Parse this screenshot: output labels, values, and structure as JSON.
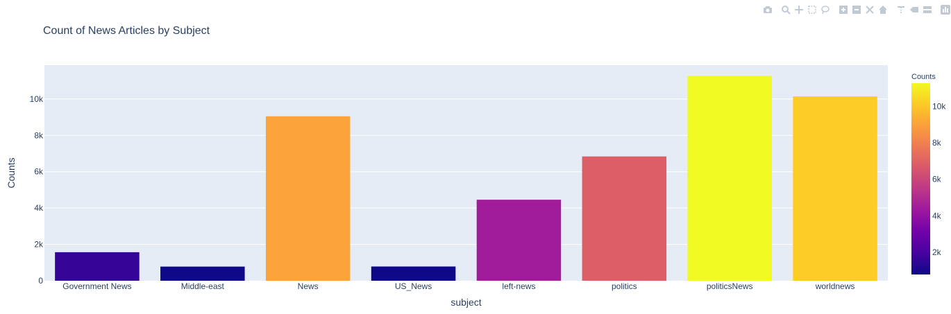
{
  "chart_data": {
    "type": "bar",
    "title": "Count of News Articles by Subject",
    "xlabel": "subject",
    "ylabel": "Counts",
    "categories": [
      "Government News",
      "Middle-east",
      "News",
      "US_News",
      "left-news",
      "politics",
      "politicsNews",
      "worldnews"
    ],
    "values": [
      1570,
      778,
      9050,
      783,
      4459,
      6841,
      11272,
      10145
    ],
    "ylim": [
      0,
      11865
    ],
    "yticks": [
      0,
      2000,
      4000,
      6000,
      8000,
      10000
    ],
    "ytick_labels": [
      "0",
      "2k",
      "4k",
      "6k",
      "8k",
      "10k"
    ],
    "grid": true,
    "colorbar": {
      "title": "Counts",
      "range": [
        778,
        11272
      ],
      "ticks": [
        2000,
        4000,
        6000,
        8000,
        10000
      ],
      "tick_labels": [
        "2k",
        "4k",
        "6k",
        "8k",
        "10k"
      ],
      "colorscale": [
        "#0d0887",
        "#46039f",
        "#7201a8",
        "#9c179e",
        "#bd3786",
        "#d8576b",
        "#ed7953",
        "#fb9f3a",
        "#fdca26",
        "#f0f921"
      ]
    },
    "plot_background": "#e5ecf6"
  },
  "modebar_icons": [
    "camera-icon",
    "zoom-icon",
    "pan-icon",
    "box-select-icon",
    "lasso-select-icon",
    "zoom-in-icon",
    "zoom-out-icon",
    "autoscale-icon",
    "reset-axes-icon",
    "spike-lines-icon",
    "hover-closest-icon",
    "hover-compare-icon",
    "plotly-logo-icon"
  ]
}
